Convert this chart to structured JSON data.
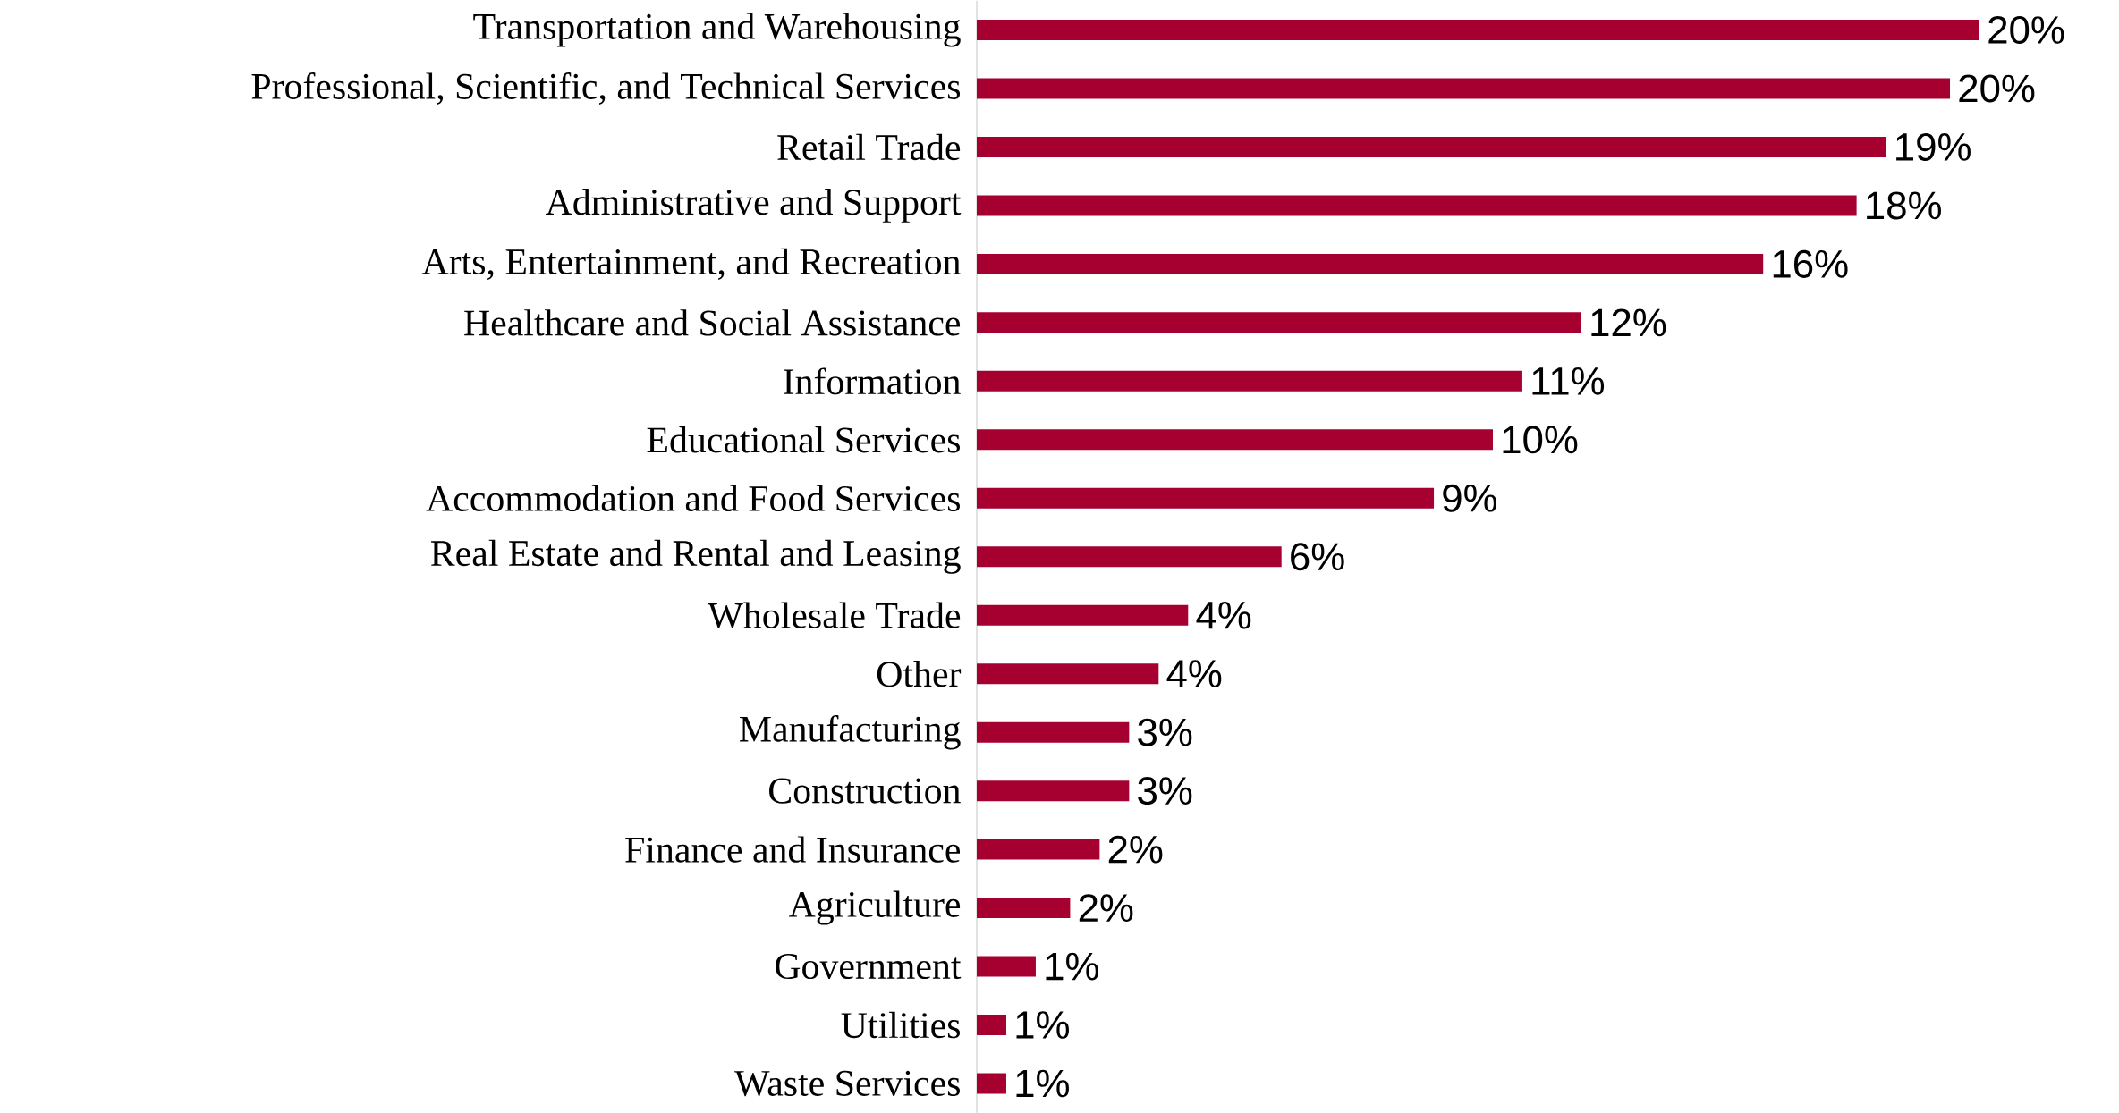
{
  "chart_data": {
    "type": "bar",
    "orientation": "horizontal",
    "color": "#a50030",
    "categories": [
      "Transportation and Warehousing",
      "Professional, Scientific, and Technical Services",
      "Retail Trade",
      "Administrative and Support",
      "Arts, Entertainment, and Recreation",
      "Healthcare and Social Assistance",
      "Information",
      "Educational Services",
      "Accommodation and Food Services",
      "Real Estate and Rental and Leasing",
      "Wholesale Trade",
      "Other",
      "Manufacturing",
      "Construction",
      "Finance and Insurance",
      "Agriculture",
      "Government",
      "Utilities",
      "Waste Services"
    ],
    "values": [
      20.4,
      19.8,
      18.5,
      17.9,
      16.0,
      12.3,
      11.1,
      10.5,
      9.3,
      6.2,
      4.3,
      3.7,
      3.1,
      3.1,
      2.5,
      1.9,
      1.2,
      0.6,
      0.6
    ],
    "value_labels": [
      "20%",
      "20%",
      "19%",
      "18%",
      "16%",
      "12%",
      "11%",
      "10%",
      "9%",
      "6%",
      "4%",
      "4%",
      "3%",
      "3%",
      "2%",
      "2%",
      "1%",
      "1%",
      "1%"
    ]
  }
}
